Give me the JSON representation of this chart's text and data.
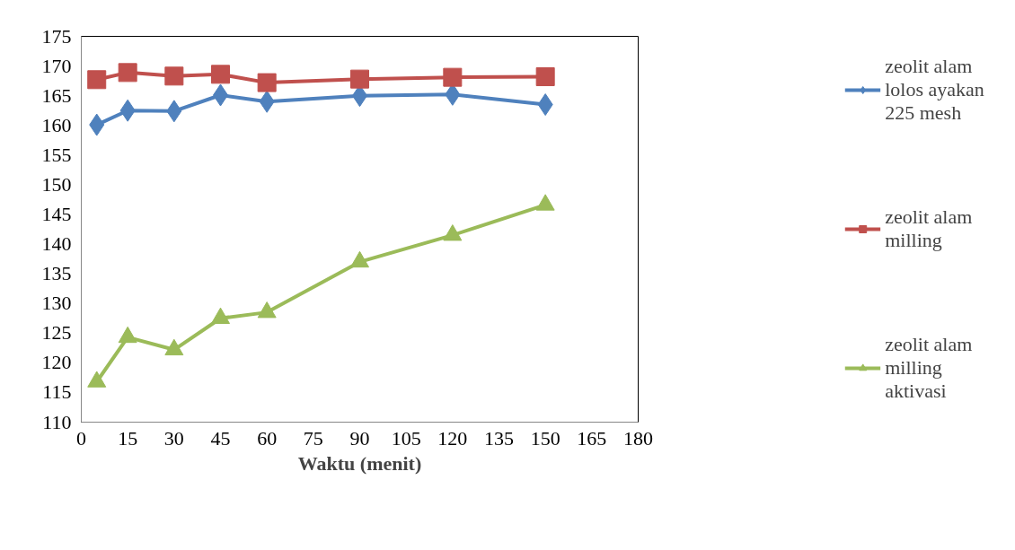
{
  "chart_data": {
    "type": "line",
    "xlabel": "Waktu (menit)",
    "x": [
      5,
      15,
      30,
      45,
      60,
      90,
      120,
      150
    ],
    "xlim": [
      0,
      180
    ],
    "xticks": [
      0,
      15,
      30,
      45,
      60,
      75,
      90,
      105,
      120,
      135,
      150,
      165,
      180
    ],
    "ylim": [
      110,
      175
    ],
    "yticks": [
      110,
      115,
      120,
      125,
      130,
      135,
      140,
      145,
      150,
      155,
      160,
      165,
      170,
      175
    ],
    "grid": false,
    "legend": "right",
    "line_style": "solid",
    "series": [
      {
        "name": "zeolit alam lolos ayakan 225 mesh",
        "color": "#4f81bd",
        "marker": "diamond",
        "values": [
          160.1,
          162.5,
          162.4,
          165.1,
          164.0,
          165.0,
          165.2,
          163.5
        ]
      },
      {
        "name": "zeolit alam milling",
        "color": "#c0504d",
        "marker": "square",
        "values": [
          167.7,
          168.9,
          168.3,
          168.6,
          167.2,
          167.8,
          168.1,
          168.2
        ]
      },
      {
        "name": "zeolit alam milling aktivasi",
        "color": "#9bbb59",
        "marker": "triangle",
        "values": [
          116.8,
          124.3,
          122.2,
          127.5,
          128.5,
          137.0,
          141.5,
          146.6
        ]
      }
    ]
  }
}
